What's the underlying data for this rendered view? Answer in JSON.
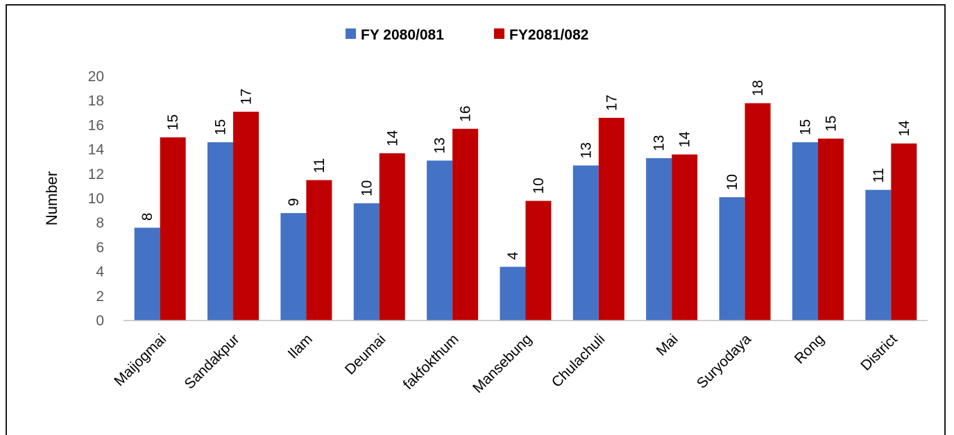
{
  "chart_data": {
    "type": "bar",
    "title": "",
    "xlabel": "",
    "ylabel": "Number",
    "ylim": [
      0,
      20
    ],
    "yticks": [
      0,
      2,
      4,
      6,
      8,
      10,
      12,
      14,
      16,
      18,
      20
    ],
    "grid": false,
    "legend_position": "top",
    "categories": [
      "Maijogmai",
      "Sandakpur",
      "Ilam",
      "Deumai",
      "fakfokthum",
      "Mansebung",
      "Chulachuli",
      "Mai",
      "Suryodaya",
      "Rong",
      "District"
    ],
    "series": [
      {
        "name": "FY 2080/081",
        "color": "#4472C4",
        "values": [
          7.6,
          14.6,
          8.8,
          9.6,
          13.1,
          4.4,
          12.7,
          13.3,
          10.1,
          14.6,
          10.7
        ],
        "labels": [
          "8",
          "15",
          "9",
          "10",
          "13",
          "4",
          "13",
          "13",
          "10",
          "15",
          "11"
        ]
      },
      {
        "name": "FY2081/082",
        "color": "#C00000",
        "values": [
          15.0,
          17.1,
          11.5,
          13.7,
          15.7,
          9.8,
          16.6,
          13.6,
          17.8,
          14.9,
          14.5
        ],
        "labels": [
          "15",
          "17",
          "11",
          "14",
          "16",
          "10",
          "17",
          "14",
          "18",
          "15",
          "14"
        ]
      }
    ]
  }
}
